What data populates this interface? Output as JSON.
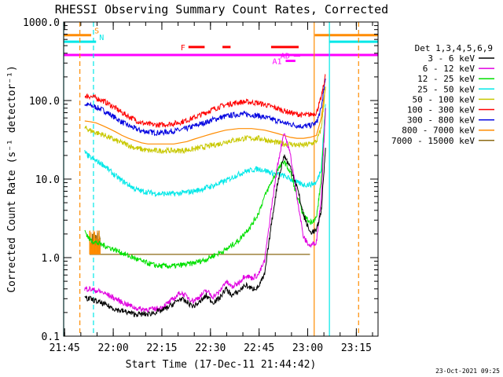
{
  "chart_data": {
    "type": "line",
    "title": "RHESSI Observing Summary Count Rates, Corrected",
    "xlabel": "Start Time (17-Dec-11 21:44:42)",
    "ylabel": "Corrected Count Rate (s⁻¹ detector⁻¹)",
    "x_unit": "minutes after 21:44:42",
    "xlim": [
      0.0,
      97.0
    ],
    "ylim": [
      0.1,
      1000
    ],
    "y_scale": "log",
    "x_ticks": [
      {
        "label": "21:45",
        "x": 0.3
      },
      {
        "label": "22:00",
        "x": 15.3
      },
      {
        "label": "22:15",
        "x": 30.3
      },
      {
        "label": "22:30",
        "x": 45.3
      },
      {
        "label": "22:45",
        "x": 60.3
      },
      {
        "label": "23:00",
        "x": 75.3
      },
      {
        "label": "23:15",
        "x": 90.3
      }
    ],
    "y_ticks": [
      {
        "label": "0.1",
        "y": 0.1
      },
      {
        "label": "1.0",
        "y": 1.0
      },
      {
        "label": "10.0",
        "y": 10.0
      },
      {
        "label": "100.0",
        "y": 100.0
      },
      {
        "label": "1000.0",
        "y": 1000.0
      }
    ],
    "legend_title": "Det 1,3,4,5,6,9",
    "legend_position": "right, outside plot",
    "x": [
      6.5,
      8,
      10,
      12,
      14,
      16,
      18,
      20,
      22,
      24,
      26,
      28,
      30,
      32,
      34,
      36,
      38,
      40,
      42,
      44,
      46,
      48,
      50,
      52,
      54,
      56,
      58,
      60,
      62,
      64,
      66,
      68,
      70,
      72,
      74,
      76,
      78,
      79.5,
      80.8
    ],
    "series": [
      {
        "name": "3 - 6 keV",
        "color": "#000000",
        "values": [
          0.3,
          0.3,
          0.28,
          0.26,
          0.24,
          0.22,
          0.21,
          0.2,
          0.19,
          0.19,
          0.19,
          0.2,
          0.21,
          0.23,
          0.26,
          0.3,
          0.27,
          0.24,
          0.27,
          0.33,
          0.27,
          0.3,
          0.4,
          0.33,
          0.37,
          0.45,
          0.4,
          0.42,
          0.6,
          2.5,
          9,
          20,
          14,
          8,
          3.5,
          2.1,
          2.2,
          4,
          25
        ]
      },
      {
        "name": "6 - 12 keV",
        "color": "#e000e0",
        "values": [
          0.4,
          0.4,
          0.38,
          0.36,
          0.33,
          0.3,
          0.27,
          0.25,
          0.23,
          0.22,
          0.22,
          0.22,
          0.23,
          0.26,
          0.3,
          0.36,
          0.32,
          0.28,
          0.32,
          0.38,
          0.32,
          0.36,
          0.5,
          0.42,
          0.48,
          0.6,
          0.55,
          0.6,
          0.9,
          4,
          15,
          40,
          20,
          6,
          1.8,
          1.4,
          1.6,
          6,
          80
        ]
      },
      {
        "name": "12 - 25 keV",
        "color": "#00e000",
        "values": [
          2.2,
          1.7,
          1.55,
          1.45,
          1.35,
          1.25,
          1.15,
          1.05,
          0.98,
          0.9,
          0.85,
          0.8,
          0.78,
          0.78,
          0.78,
          0.8,
          0.82,
          0.85,
          0.9,
          0.95,
          1.05,
          1.15,
          1.25,
          1.45,
          1.65,
          2.1,
          2.6,
          3.6,
          6,
          9,
          13,
          17,
          12,
          6,
          3.5,
          2.8,
          3.2,
          10,
          80
        ]
      },
      {
        "name": "25 - 50 keV",
        "color": "#00e8e8",
        "values": [
          22,
          19,
          17,
          15.5,
          13,
          11,
          9.5,
          8.5,
          7.5,
          7,
          6.8,
          6.6,
          6.5,
          6.5,
          6.5,
          6.6,
          6.8,
          7,
          7.3,
          7.8,
          8.2,
          8.8,
          9.5,
          10.5,
          11.5,
          12.5,
          13,
          13.5,
          13,
          12,
          11.5,
          11,
          10,
          9,
          8.5,
          8.5,
          9,
          14,
          90
        ]
      },
      {
        "name": "50 - 100 keV",
        "color": "#c8c800",
        "values": [
          45,
          42,
          39,
          37,
          34,
          31,
          29,
          27,
          25,
          24,
          23,
          23,
          23,
          23,
          23,
          23,
          23.5,
          24,
          25,
          26,
          27,
          28,
          30,
          31,
          32,
          33,
          33,
          33,
          32,
          30,
          29,
          28,
          28,
          27,
          27,
          28,
          30,
          45,
          150
        ]
      },
      {
        "name": "100 - 300 keV",
        "color": "#ff0000",
        "values": [
          115,
          113,
          108,
          100,
          90,
          80,
          70,
          63,
          57,
          52,
          50,
          49,
          49,
          50,
          51,
          53,
          56,
          60,
          65,
          71,
          77,
          83,
          88,
          92,
          95,
          96,
          95,
          93,
          89,
          84,
          79,
          74,
          70,
          67,
          65,
          66,
          70,
          110,
          210
        ]
      },
      {
        "name": "300 - 800 keV",
        "color": "#0000e0",
        "values": [
          90,
          87,
          82,
          76,
          68,
          60,
          53,
          48,
          44,
          41,
          40,
          39,
          39,
          40,
          41,
          42,
          44,
          47,
          50,
          53,
          57,
          60,
          63,
          65,
          67,
          67,
          66,
          64,
          61,
          58,
          55,
          52,
          50,
          48,
          47,
          48,
          52,
          80,
          190
        ]
      },
      {
        "name": "800 - 7000 keV",
        "color": "#ff8c00",
        "values": [
          55,
          54,
          52,
          48,
          44,
          40,
          36,
          33,
          31,
          29,
          28,
          28,
          28,
          28,
          28,
          29,
          30,
          32,
          34,
          36,
          38,
          40,
          42,
          43,
          44,
          44,
          44,
          43,
          42,
          40,
          38,
          36,
          34,
          33,
          33,
          34,
          36,
          60,
          150
        ]
      },
      {
        "name": "7000 - 15000 keV",
        "color": "#8b6914",
        "values": [
          null,
          1.1,
          1.1,
          1.1,
          1.1,
          1.1,
          1.1,
          1.1,
          1.1,
          1.1,
          1.1,
          1.1,
          1.1,
          1.1,
          1.1,
          1.1,
          1.1,
          1.1,
          1.1,
          1.1,
          1.1,
          1.1,
          1.1,
          1.1,
          1.1,
          1.1,
          1.1,
          1.1,
          1.1,
          1.1,
          1.1,
          1.1,
          1.1,
          1.1,
          1.1,
          1.1,
          null,
          null,
          null
        ]
      }
    ],
    "flag_bars": [
      {
        "label": "S",
        "color": "#ff8c00",
        "y": 680,
        "segments": [
          [
            0,
            8.5
          ],
          [
            77.5,
            97
          ]
        ]
      },
      {
        "label": "N",
        "color": "#00e8e8",
        "y": 560,
        "segments": [
          [
            0,
            10
          ],
          [
            82,
            97
          ]
        ]
      },
      {
        "label": "",
        "color": "#ff00ff",
        "y": 380,
        "segments": [
          [
            0,
            97
          ]
        ]
      },
      {
        "label": "F",
        "color": "#ff0000",
        "y": 480,
        "segments": [
          [
            38.5,
            43.5
          ],
          [
            49,
            51.5
          ],
          [
            64,
            72.5
          ]
        ]
      },
      {
        "label": "AD",
        "color": "#ff00ff",
        "y": 375,
        "segments": [
          [
            71,
            73
          ]
        ]
      },
      {
        "label": "A1",
        "color": "#ff00ff",
        "y": 320,
        "segments": [
          [
            68.5,
            71.5
          ]
        ]
      }
    ],
    "vertical_lines": [
      {
        "x": 0.0,
        "color": "#00e8e8",
        "style": "solid"
      },
      {
        "x": 5.0,
        "color": "#ff8c00",
        "style": "dashed"
      },
      {
        "x": 9.2,
        "color": "#00e8e8",
        "style": "dashed"
      },
      {
        "x": 77.3,
        "color": "#ff8c00",
        "style": "solid"
      },
      {
        "x": 82.0,
        "color": "#00e8e8",
        "style": "solid"
      },
      {
        "x": 91.0,
        "color": "#ff8c00",
        "style": "dashed"
      }
    ]
  },
  "footer": {
    "timestamp": "23-Oct-2021 09:25"
  }
}
